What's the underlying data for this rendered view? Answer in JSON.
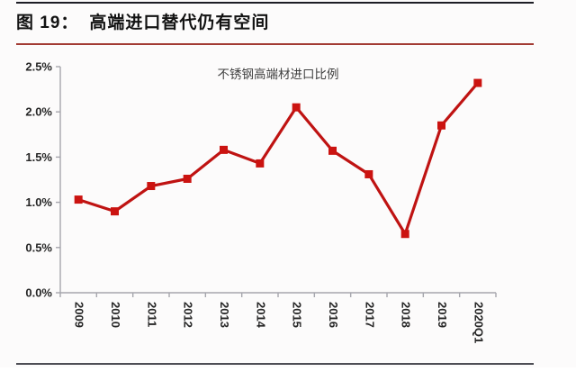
{
  "header": {
    "fig_label": "图 19：",
    "title": "高端进口替代仍有空间"
  },
  "chart_data": {
    "type": "line",
    "title": "不锈钢高端材进口比例",
    "categories": [
      "2009",
      "2010",
      "2011",
      "2012",
      "2013",
      "2014",
      "2015",
      "2016",
      "2017",
      "2018",
      "2019",
      "2020Q1"
    ],
    "series": [
      {
        "name": "不锈钢高端材进口比例",
        "values": [
          1.03,
          0.9,
          1.18,
          1.26,
          1.58,
          1.43,
          2.05,
          1.57,
          1.31,
          0.65,
          1.85,
          2.32
        ]
      }
    ],
    "unit": "%",
    "xlabel": "",
    "ylabel": "",
    "ylim": [
      0,
      2.5
    ],
    "ytick_labels": [
      "0.0%",
      "0.5%",
      "1.0%",
      "1.5%",
      "2.0%",
      "2.5%"
    ],
    "grid": false,
    "legend_position": "none",
    "title_position": "top-center-inside",
    "marker": "square",
    "x_label_rotation_deg": 90,
    "colors": {
      "line": "#bf1312",
      "marker": "#cb1310",
      "axis": "#a6a6ad",
      "labels": "#262626",
      "chart_title": "#3f3f3f"
    }
  },
  "decor": {
    "top_rule_color": "#1d1d25",
    "header_rule_color": "#a23b33",
    "bottom_rule_color": "#4e4e55",
    "background": "#fcfbfb"
  }
}
